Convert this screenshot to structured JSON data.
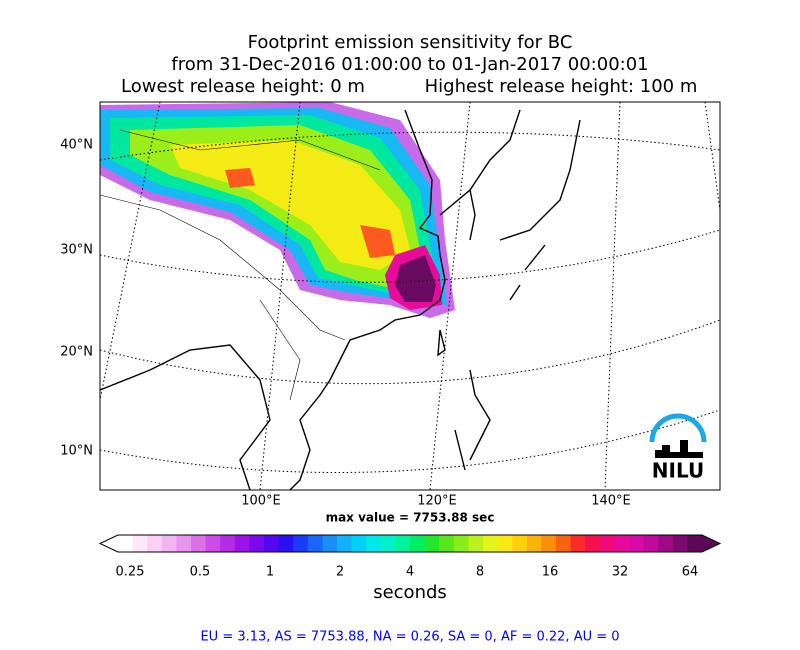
{
  "title": {
    "line1": "Footprint emission sensitivity for BC",
    "line2": "from 31-Dec-2016 01:00:00 to 01-Jan-2017 00:00:01",
    "low": "Lowest release height: 0 m",
    "high": "Highest release height: 100 m"
  },
  "lat_labels": [
    "40°N",
    "30°N",
    "20°N",
    "10°N"
  ],
  "lon_labels": [
    "100°E",
    "120°E",
    "140°E"
  ],
  "max_value": "max value = 7753.88 sec",
  "colorbar": {
    "ticks": [
      "0.25",
      "0.5",
      "1",
      "2",
      "4",
      "8",
      "16",
      "32",
      "64"
    ],
    "label": "seconds",
    "colors": [
      "#ffffff",
      "#fde8fb",
      "#f9d0f6",
      "#f2b5f2",
      "#e795ee",
      "#dc70ea",
      "#cc4ce8",
      "#b52ce8",
      "#9a14ea",
      "#7a0aee",
      "#5208f0",
      "#2a10f2",
      "#1a3cf6",
      "#1a66f8",
      "#1a8ef9",
      "#10b2fa",
      "#00d2f6",
      "#00e8e8",
      "#00f0c8",
      "#00f29a",
      "#00ee66",
      "#22e62a",
      "#5ae61a",
      "#8cec1a",
      "#bcf01a",
      "#e4f41a",
      "#f8ea10",
      "#fcd00a",
      "#fcb00a",
      "#fc8e0a",
      "#fc620e",
      "#fc2a2a",
      "#f8104e",
      "#f20a78",
      "#e80a9a",
      "#d80aa8",
      "#c00a9e",
      "#9e0a86",
      "#7a0a6e",
      "#5a0a56"
    ]
  },
  "logo": "NILU",
  "stats": "EU = 3.13,  AS = 7753.88,  NA = 0.26,  SA = 0,  AF = 0.22,  AU = 0"
}
